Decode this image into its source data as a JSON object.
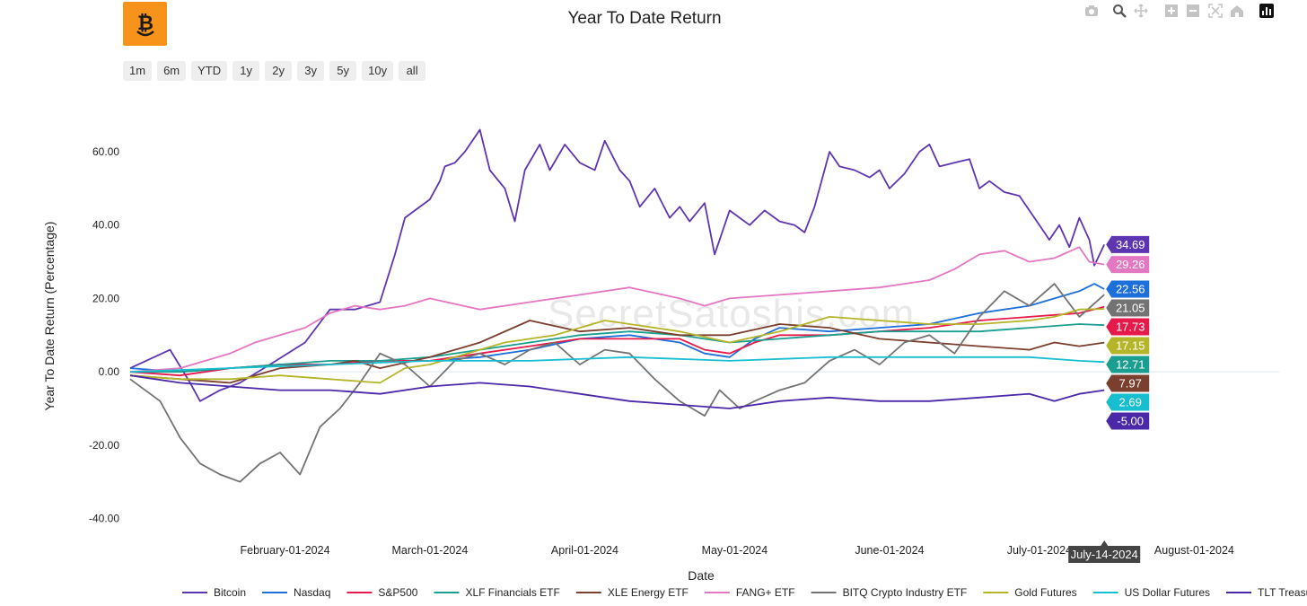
{
  "toolbar": {
    "icons": [
      "camera-icon",
      "zoom-icon",
      "pan-icon",
      "zoom-in-icon",
      "zoom-out-icon",
      "autoscale-icon",
      "home-icon",
      "plotly-logo-icon"
    ]
  },
  "logo": {
    "name": "bitcoin-smile-logo",
    "color": "#f7931a"
  },
  "range_buttons": [
    "1m",
    "6m",
    "YTD",
    "1y",
    "2y",
    "3y",
    "5y",
    "10y",
    "all"
  ],
  "watermark": "SecretSatoshis.com",
  "hover_label": "July-14-2024",
  "chart_data": {
    "type": "line",
    "title": "Year To Date Return",
    "xlabel": "Date",
    "ylabel": "Year To Date Return (Percentage)",
    "ylim": [
      -45,
      72
    ],
    "yticks": [
      60,
      40,
      20,
      0,
      -20,
      -40
    ],
    "ytick_labels": [
      "60.00",
      "40.00",
      "20.00",
      "0.00",
      "-20.00",
      "-40.00"
    ],
    "xlim": [
      0,
      230
    ],
    "xticks": [
      31,
      60,
      91,
      121,
      152,
      182,
      213
    ],
    "xtick_labels": [
      "February-01-2024",
      "March-01-2024",
      "April-01-2024",
      "May-01-2024",
      "June-01-2024",
      "July-01-2024",
      "August-01-2024"
    ],
    "grid": false,
    "legend_position": "bottom",
    "series": [
      {
        "name": "Bitcoin",
        "color": "#5e35b1",
        "end_value": 34.69,
        "end_label": "34.69",
        "x": [
          0,
          8,
          12,
          14,
          18,
          22,
          28,
          35,
          40,
          45,
          50,
          53,
          55,
          57,
          60,
          62,
          63,
          65,
          67,
          70,
          72,
          75,
          77,
          79,
          82,
          84,
          87,
          90,
          93,
          95,
          98,
          100,
          102,
          105,
          108,
          110,
          112,
          115,
          117,
          120,
          122,
          124,
          127,
          130,
          133,
          135,
          137,
          140,
          142,
          145,
          148,
          150,
          152,
          155,
          158,
          160,
          162,
          165,
          168,
          170,
          172,
          175,
          178,
          180,
          182,
          184,
          186,
          188,
          190,
          192,
          193,
          195
        ],
        "y": [
          1,
          6,
          -3,
          -8,
          -5,
          -3,
          2,
          8,
          17,
          17,
          19,
          32,
          42,
          44,
          47,
          52,
          56,
          57,
          60,
          66,
          55,
          50,
          41,
          55,
          62,
          55,
          62,
          57,
          55,
          63,
          55,
          52,
          45,
          50,
          42,
          45,
          41,
          46,
          32,
          44,
          42,
          40,
          44,
          41,
          40,
          38,
          45,
          60,
          56,
          55,
          53,
          55,
          50,
          54,
          60,
          62,
          56,
          57,
          58,
          50,
          52,
          49,
          48,
          44,
          40,
          36,
          40,
          34,
          42,
          36,
          29,
          34.69
        ]
      },
      {
        "name": "Nasdaq",
        "color": "#1e6fd9",
        "end_value": 22.56,
        "end_label": "22.56",
        "x": [
          0,
          10,
          20,
          30,
          40,
          50,
          60,
          70,
          80,
          90,
          100,
          110,
          115,
          120,
          125,
          130,
          140,
          150,
          160,
          170,
          175,
          180,
          185,
          190,
          193,
          195
        ],
        "y": [
          1,
          0,
          1,
          2,
          2,
          3,
          3,
          4,
          6,
          9,
          10,
          8,
          5,
          4,
          9,
          12,
          11,
          12,
          13,
          16,
          17,
          18,
          20,
          22,
          24,
          22.56
        ]
      },
      {
        "name": "S&P500",
        "color": "#e6194b",
        "end_value": 17.73,
        "end_label": "17.73",
        "x": [
          0,
          10,
          20,
          30,
          40,
          50,
          60,
          70,
          80,
          90,
          100,
          110,
          115,
          120,
          125,
          130,
          140,
          150,
          160,
          170,
          180,
          190,
          195
        ],
        "y": [
          0,
          -1,
          1,
          2,
          2,
          3,
          3,
          5,
          7,
          9,
          9,
          9,
          6,
          5,
          8,
          10,
          10,
          11,
          12,
          14,
          15,
          16,
          17.73
        ]
      },
      {
        "name": "XLF Financials ETF",
        "color": "#1a9e8f",
        "end_value": 12.71,
        "end_label": "12.71",
        "x": [
          0,
          10,
          20,
          30,
          40,
          50,
          60,
          70,
          80,
          90,
          100,
          110,
          120,
          130,
          140,
          150,
          160,
          170,
          180,
          190,
          195
        ],
        "y": [
          0,
          0,
          1,
          2,
          3,
          3,
          4,
          6,
          8,
          10,
          11,
          10,
          8,
          9,
          10,
          11,
          11,
          11,
          12,
          13,
          12.71
        ]
      },
      {
        "name": "XLE Energy ETF",
        "color": "#7b3f2f",
        "end_value": 7.97,
        "end_label": "7.97",
        "x": [
          0,
          10,
          20,
          30,
          40,
          45,
          50,
          60,
          70,
          80,
          90,
          100,
          110,
          120,
          130,
          140,
          150,
          160,
          170,
          180,
          185,
          190,
          195
        ],
        "y": [
          -1,
          -2,
          -3,
          1,
          2,
          3,
          1,
          4,
          8,
          14,
          11,
          12,
          10,
          10,
          13,
          12,
          9,
          8,
          7,
          6,
          8,
          7,
          7.97
        ]
      },
      {
        "name": "FANG+ ETF",
        "color": "#e377c2",
        "end_value": 29.26,
        "end_label": "29.26",
        "x": [
          0,
          10,
          20,
          25,
          30,
          35,
          40,
          45,
          50,
          55,
          60,
          70,
          80,
          90,
          100,
          110,
          115,
          120,
          130,
          140,
          150,
          155,
          160,
          165,
          170,
          175,
          180,
          185,
          190,
          192,
          195
        ],
        "y": [
          0,
          1,
          5,
          8,
          10,
          12,
          16,
          18,
          17,
          18,
          20,
          17,
          19,
          21,
          23,
          20,
          18,
          20,
          21,
          22,
          23,
          24,
          25,
          28,
          32,
          33,
          30,
          31,
          34,
          30,
          29.26
        ]
      },
      {
        "name": "BITQ Crypto Industry ETF",
        "color": "#737373",
        "end_value": 21.05,
        "end_label": "21.05",
        "x": [
          0,
          6,
          10,
          14,
          18,
          22,
          26,
          30,
          34,
          38,
          42,
          46,
          50,
          55,
          60,
          65,
          70,
          75,
          80,
          85,
          90,
          95,
          100,
          105,
          110,
          115,
          118,
          122,
          125,
          130,
          135,
          140,
          145,
          150,
          155,
          160,
          165,
          170,
          175,
          180,
          185,
          190,
          195
        ],
        "y": [
          -2,
          -8,
          -18,
          -25,
          -28,
          -30,
          -25,
          -22,
          -28,
          -15,
          -10,
          -3,
          5,
          2,
          -4,
          3,
          5,
          2,
          6,
          8,
          2,
          6,
          5,
          -2,
          -8,
          -12,
          -5,
          -10,
          -8,
          -5,
          -3,
          3,
          6,
          2,
          8,
          10,
          5,
          15,
          22,
          18,
          24,
          15,
          21.05
        ]
      },
      {
        "name": "Gold Futures",
        "color": "#b5b52a",
        "end_value": 17.15,
        "end_label": "17.15",
        "x": [
          0,
          10,
          20,
          30,
          40,
          50,
          55,
          60,
          65,
          70,
          75,
          80,
          85,
          90,
          95,
          100,
          110,
          120,
          130,
          140,
          150,
          160,
          170,
          180,
          185,
          190,
          195
        ],
        "y": [
          -1,
          -2,
          -2,
          -1,
          -2,
          -3,
          1,
          2,
          4,
          6,
          8,
          9,
          10,
          12,
          14,
          13,
          11,
          8,
          11,
          15,
          14,
          13,
          13,
          14,
          15,
          17,
          17.15
        ]
      },
      {
        "name": "US Dollar Futures",
        "color": "#17becf",
        "end_value": 2.69,
        "end_label": "2.69",
        "x": [
          0,
          20,
          40,
          60,
          80,
          100,
          120,
          140,
          160,
          180,
          190,
          195
        ],
        "y": [
          0,
          1,
          2,
          3,
          3,
          4,
          3,
          4,
          4,
          4,
          3,
          2.69
        ]
      },
      {
        "name": "TLT Treasury Bond ETF",
        "color": "#4a28a8",
        "end_value": -5.0,
        "end_label": "-5.00",
        "x": [
          0,
          10,
          20,
          30,
          40,
          50,
          60,
          70,
          80,
          90,
          100,
          110,
          120,
          130,
          140,
          150,
          160,
          170,
          180,
          185,
          190,
          195
        ],
        "y": [
          -1,
          -3,
          -4,
          -5,
          -5,
          -6,
          -4,
          -3,
          -4,
          -6,
          -8,
          -9,
          -10,
          -8,
          -7,
          -8,
          -8,
          -7,
          -6,
          -8,
          -6,
          -5.0
        ]
      }
    ]
  }
}
